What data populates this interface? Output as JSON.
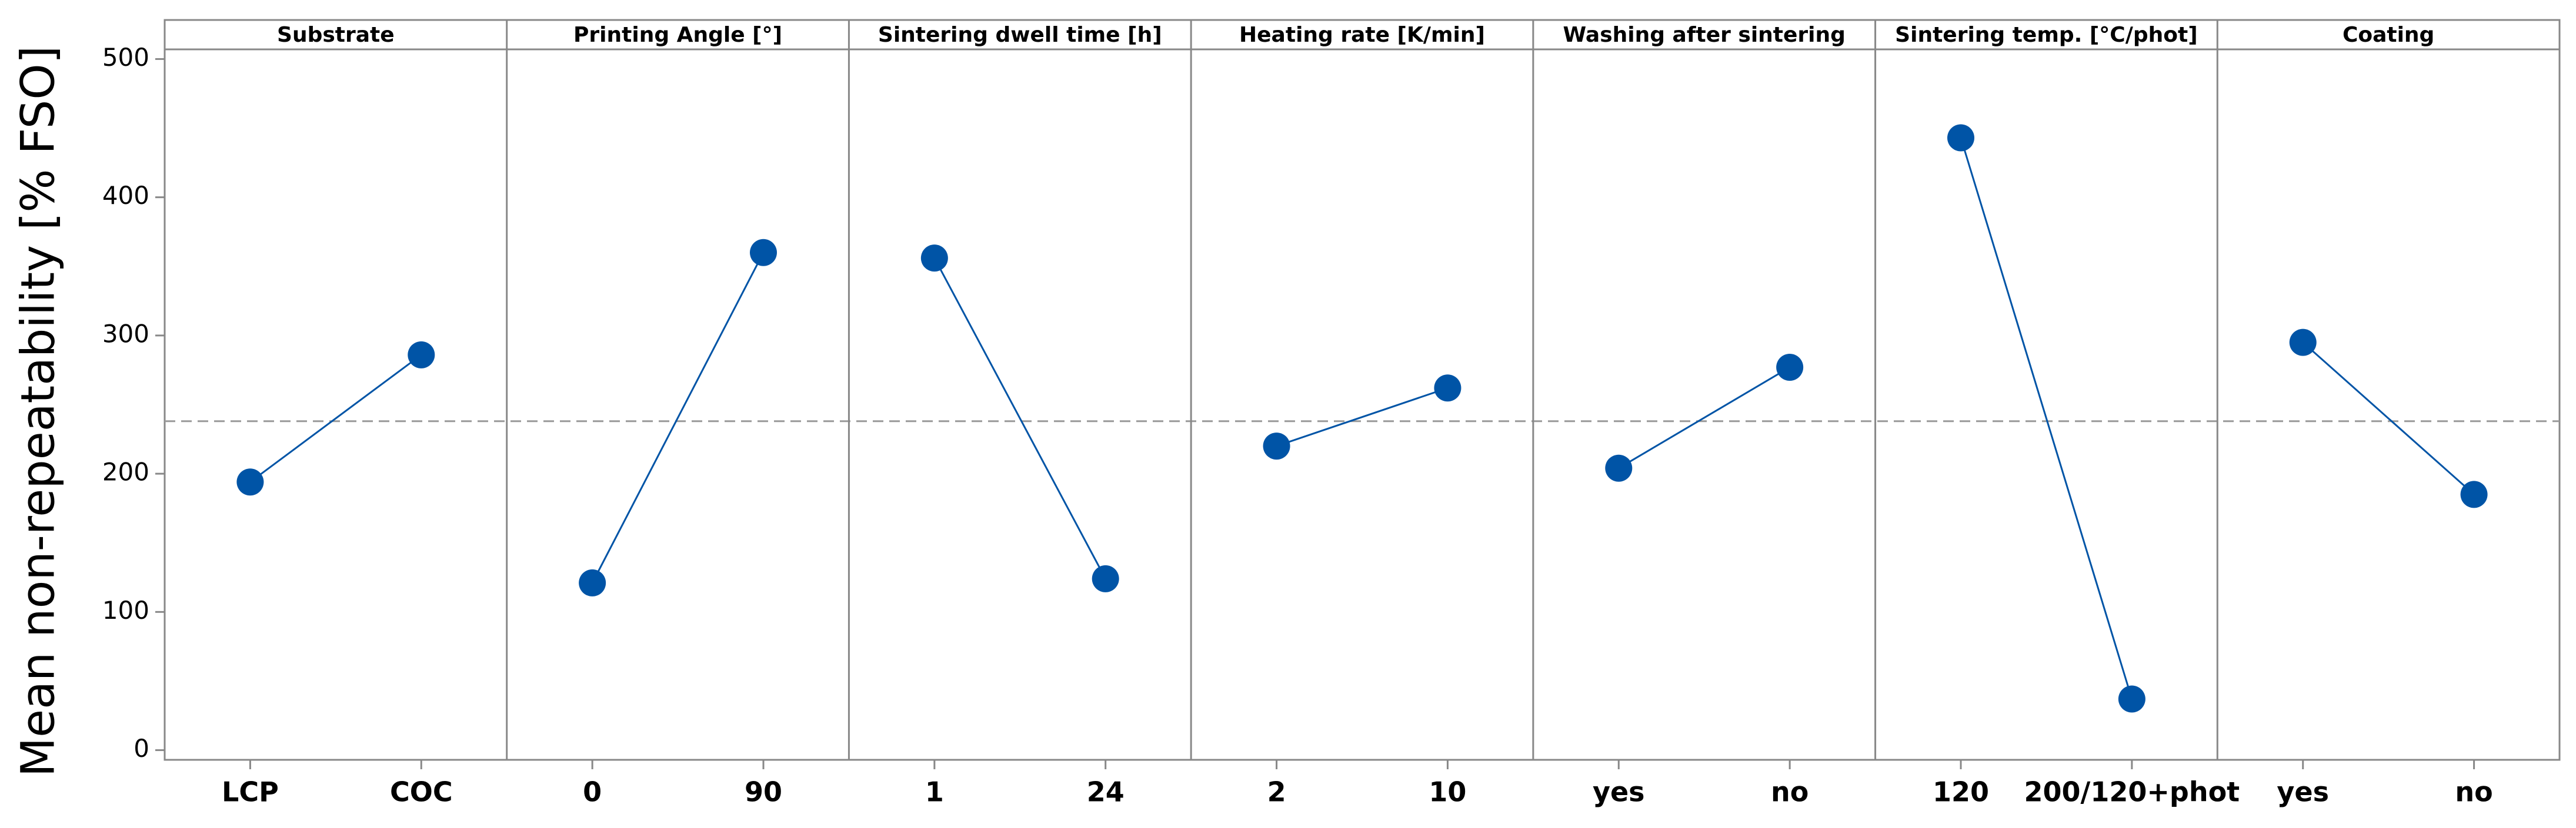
{
  "chart_data": {
    "type": "main-effects",
    "y_label": "Mean non-repeatability [% FSO]",
    "ylim": [
      -7,
      507
    ],
    "yticks": [
      0,
      100,
      200,
      300,
      400,
      500
    ],
    "color": "#0054a6",
    "reference_line": 238,
    "panels": [
      {
        "title": "Substrate",
        "categories": [
          "LCP",
          "COC"
        ],
        "values": [
          194,
          286
        ]
      },
      {
        "title": "Printing Angle [°]",
        "categories": [
          "0",
          "90"
        ],
        "values": [
          121,
          360
        ]
      },
      {
        "title": "Sintering dwell time [h]",
        "categories": [
          "1",
          "24"
        ],
        "values": [
          356,
          124
        ]
      },
      {
        "title": "Heating rate [K/min]",
        "categories": [
          "2",
          "10"
        ],
        "values": [
          220,
          262
        ]
      },
      {
        "title": "Washing after sintering",
        "categories": [
          "yes",
          "no"
        ],
        "values": [
          204,
          277
        ]
      },
      {
        "title": "Sintering temp. [°C/phot]",
        "categories": [
          "120",
          "200/120+phot"
        ],
        "values": [
          443,
          37
        ]
      },
      {
        "title": "Coating",
        "categories": [
          "yes",
          "no"
        ],
        "values": [
          295,
          185
        ]
      }
    ]
  }
}
